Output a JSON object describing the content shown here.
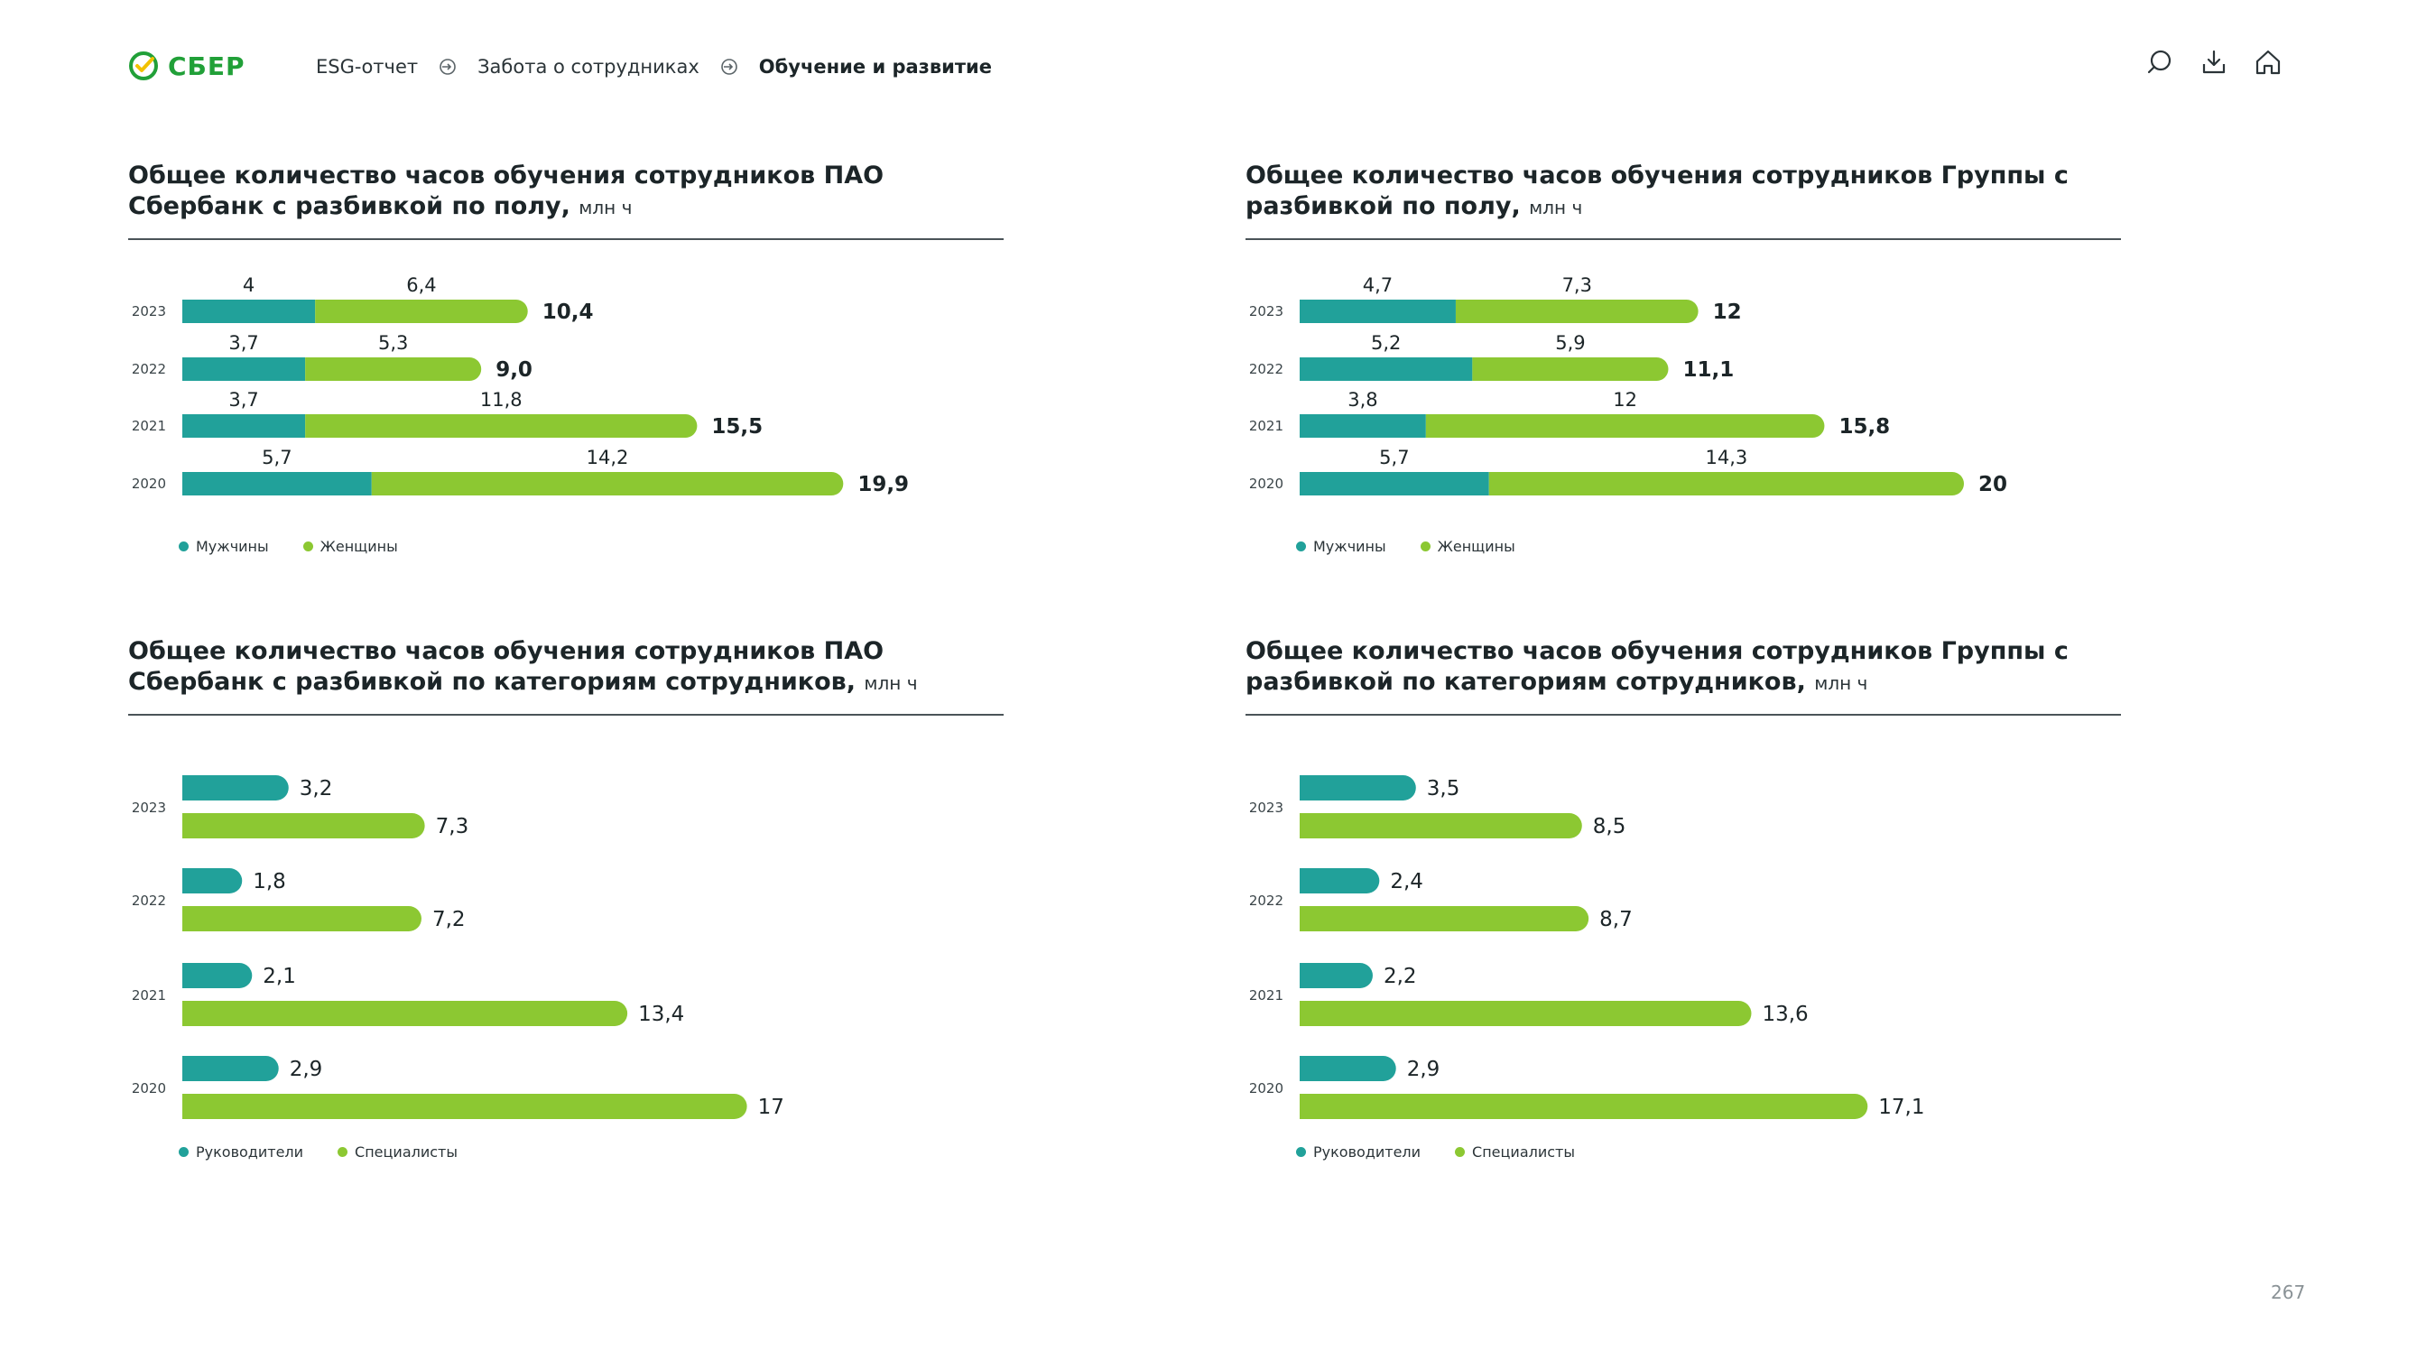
{
  "colors": {
    "men": "#21a19a",
    "women": "#8cc832",
    "brand": "#21a038"
  },
  "header": {
    "logo_text": "СБЕР",
    "breadcrumbs": [
      "ESG-отчет",
      "Забота о сотрудниках",
      "Обучение и развитие"
    ],
    "tools": [
      "search-icon",
      "download-icon",
      "home-icon"
    ]
  },
  "page_number": "267",
  "chart_data": [
    {
      "type": "bar",
      "stacked": true,
      "orientation": "horizontal",
      "title": "Общее количество часов обучения сотрудников ПАО Сбербанк с разбивкой по полу,",
      "unit": "млн ч",
      "categories": [
        "2023",
        "2022",
        "2021",
        "2020"
      ],
      "series": [
        {
          "name": "Мужчины",
          "values": [
            4,
            3.7,
            3.7,
            5.7
          ],
          "labels": [
            "4",
            "3,7",
            "3,7",
            "5,7"
          ]
        },
        {
          "name": "Женщины",
          "values": [
            6.4,
            5.3,
            11.8,
            14.2
          ],
          "labels": [
            "6,4",
            "5,3",
            "11,8",
            "14,2"
          ]
        }
      ],
      "totals": [
        "10,4",
        "9,0",
        "15,5",
        "19,9"
      ]
    },
    {
      "type": "bar",
      "stacked": true,
      "orientation": "horizontal",
      "title": "Общее количество часов обучения сотрудников Группы с разбивкой по полу,",
      "unit": "млн ч",
      "categories": [
        "2023",
        "2022",
        "2021",
        "2020"
      ],
      "series": [
        {
          "name": "Мужчины",
          "values": [
            4.7,
            5.2,
            3.8,
            5.7
          ],
          "labels": [
            "4,7",
            "5,2",
            "3,8",
            "5,7"
          ]
        },
        {
          "name": "Женщины",
          "values": [
            7.3,
            5.9,
            12,
            14.3
          ],
          "labels": [
            "7,3",
            "5,9",
            "12",
            "14,3"
          ]
        }
      ],
      "totals": [
        "12",
        "11,1",
        "15,8",
        "20"
      ]
    },
    {
      "type": "bar",
      "stacked": false,
      "orientation": "horizontal",
      "title": "Общее количество часов обучения сотрудников ПАО Сбербанк с разбивкой по категориям сотрудников,",
      "unit": "млн ч",
      "categories": [
        "2023",
        "2022",
        "2021",
        "2020"
      ],
      "series": [
        {
          "name": "Руководители",
          "values": [
            3.2,
            1.8,
            2.1,
            2.9
          ],
          "labels": [
            "3,2",
            "1,8",
            "2,1",
            "2,9"
          ]
        },
        {
          "name": "Специалисты",
          "values": [
            7.3,
            7.2,
            13.4,
            17
          ],
          "labels": [
            "7,3",
            "7,2",
            "13,4",
            "17"
          ]
        }
      ]
    },
    {
      "type": "bar",
      "stacked": false,
      "orientation": "horizontal",
      "title": "Общее количество часов обучения сотрудников Группы с разбивкой по категориям сотрудников,",
      "unit": "млн ч",
      "categories": [
        "2023",
        "2022",
        "2021",
        "2020"
      ],
      "series": [
        {
          "name": "Руководители",
          "values": [
            3.5,
            2.4,
            2.2,
            2.9
          ],
          "labels": [
            "3,5",
            "2,4",
            "2,2",
            "2,9"
          ]
        },
        {
          "name": "Специалисты",
          "values": [
            8.5,
            8.7,
            13.6,
            17.1
          ],
          "labels": [
            "8,5",
            "8,7",
            "13,6",
            "17,1"
          ]
        }
      ]
    }
  ]
}
